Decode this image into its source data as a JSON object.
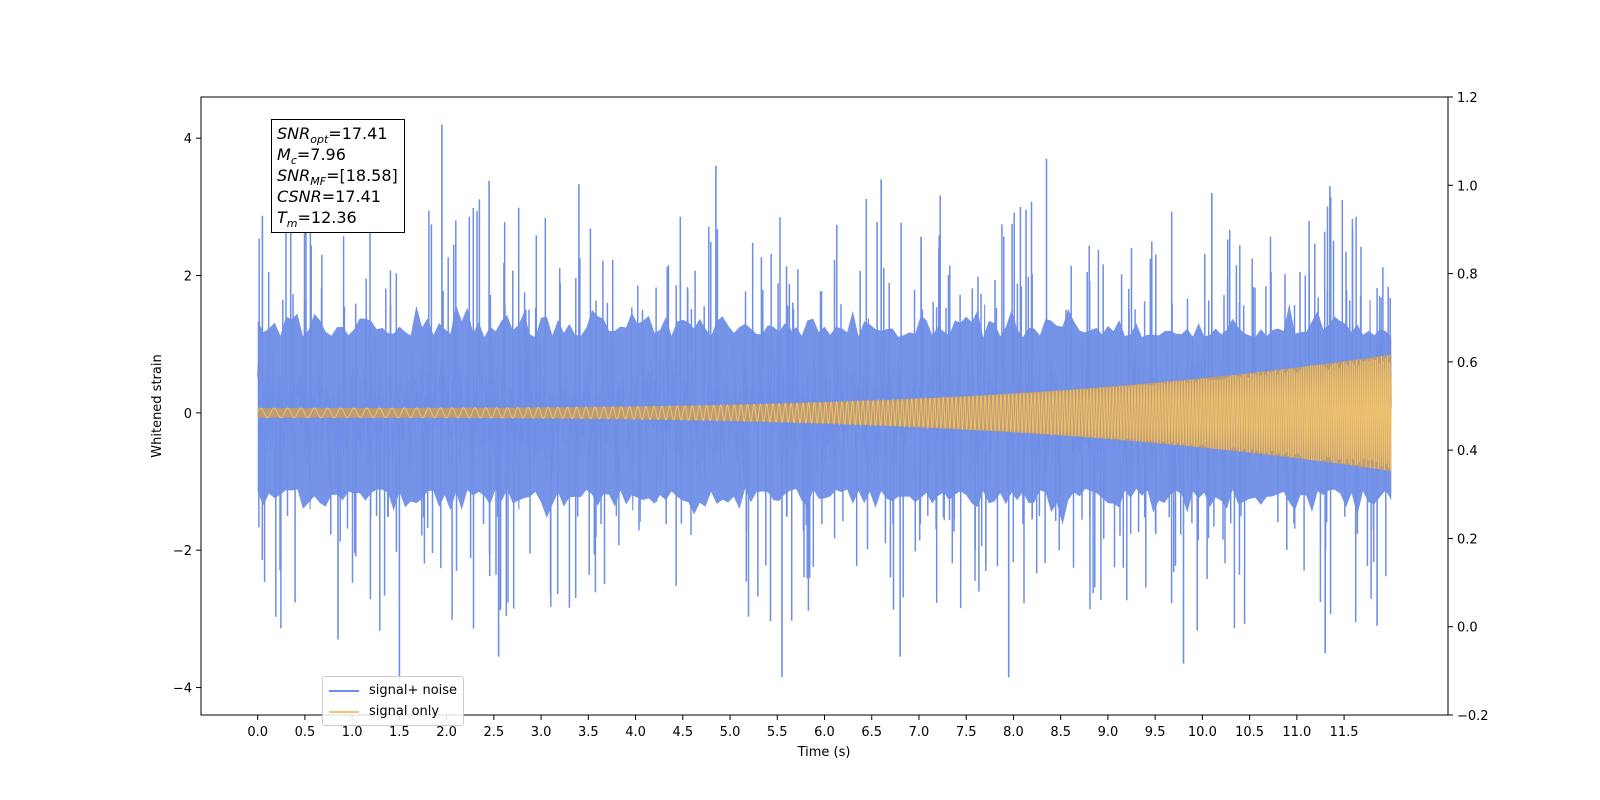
{
  "chart_data": {
    "type": "line",
    "xlabel": "Time (s)",
    "ylabel": "Whitened strain",
    "xlim": [
      -0.6,
      12.6
    ],
    "ylim": [
      -4.4,
      4.6
    ],
    "y2lim": [
      -0.2,
      1.2
    ],
    "x_ticks": [
      "0.0",
      "0.5",
      "1.0",
      "1.5",
      "2.0",
      "2.5",
      "3.0",
      "3.5",
      "4.0",
      "4.5",
      "5.0",
      "5.5",
      "6.0",
      "6.5",
      "7.0",
      "7.5",
      "8.0",
      "8.5",
      "9.0",
      "9.5",
      "10.0",
      "10.5",
      "11.0",
      "11.5"
    ],
    "y_ticks": [
      "−4",
      "−2",
      "0",
      "2",
      "4"
    ],
    "y2_ticks": [
      "−0.2",
      "0.0",
      "0.2",
      "0.4",
      "0.6",
      "0.8",
      "1.0",
      "1.2"
    ],
    "legend_position": "lower-left",
    "series": [
      {
        "name": "signal+ noise",
        "color": "#6f8ee6",
        "x_range": [
          0.0,
          12.0
        ],
        "envelope_typical": 1.5,
        "peaks": [
          {
            "x": 0.05,
            "y": 2.87
          },
          {
            "x": 0.35,
            "y": 2.7
          },
          {
            "x": 1.95,
            "y": 4.2
          },
          {
            "x": 2.45,
            "y": 3.38
          },
          {
            "x": 3.4,
            "y": 3.33
          },
          {
            "x": 4.85,
            "y": 3.6
          },
          {
            "x": 6.6,
            "y": 3.4
          },
          {
            "x": 8.35,
            "y": 3.7
          },
          {
            "x": 10.1,
            "y": 3.2
          },
          {
            "x": 11.35,
            "y": 3.3
          },
          {
            "x": 1.5,
            "y": -3.9
          },
          {
            "x": 0.85,
            "y": -3.3
          },
          {
            "x": 2.55,
            "y": -3.55
          },
          {
            "x": 5.55,
            "y": -3.85
          },
          {
            "x": 6.8,
            "y": -3.55
          },
          {
            "x": 7.95,
            "y": -3.85
          },
          {
            "x": 9.8,
            "y": -3.65
          },
          {
            "x": 11.3,
            "y": -3.5
          },
          {
            "x": 11.85,
            "y": -3.1
          }
        ]
      },
      {
        "name": "signal only",
        "color": "#f2c46d",
        "x_range": [
          0.0,
          12.0
        ],
        "amplitude_start": 0.07,
        "amplitude_end": 0.85,
        "chirp": true
      }
    ]
  },
  "info_box": {
    "snr_opt_label": "SNR",
    "snr_opt_sub": "opt",
    "snr_opt_value": "=17.41",
    "mc_label": "M",
    "mc_sub": "c",
    "mc_value": "=7.96",
    "snr_mf_label": "SNR",
    "snr_mf_sub": "MF",
    "snr_mf_value": "=[18.58]",
    "csnr_label": "CSNR",
    "csnr_value": "=17.41",
    "tm_label": "T",
    "tm_sub": "m",
    "tm_value": "=12.36"
  },
  "legend": {
    "items": [
      {
        "label": "signal+ noise",
        "color": "#6f8ee6"
      },
      {
        "label": "signal only",
        "color": "#f2c46d"
      }
    ]
  }
}
